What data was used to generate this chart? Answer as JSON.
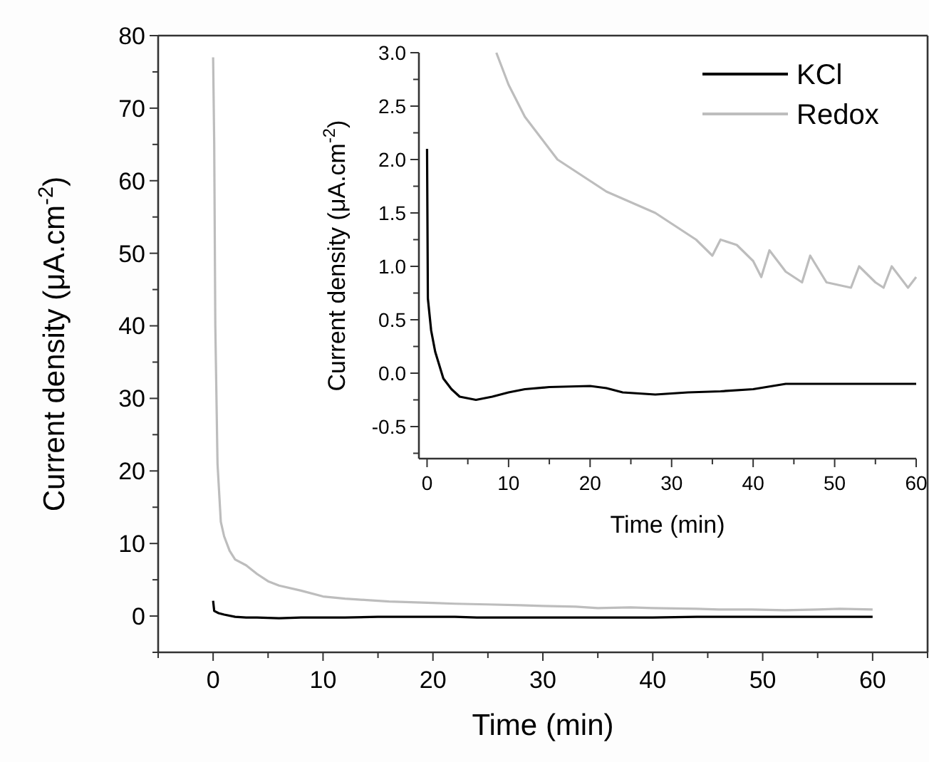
{
  "chart_data": [
    {
      "type": "line",
      "xlabel": "Time (min)",
      "ylabel": "Current density (μA.cm$^{-2}$)",
      "xlim": [
        -5,
        65
      ],
      "ylim": [
        -5,
        80
      ],
      "xticks": [
        {
          "value": -5,
          "label": null
        },
        0,
        {
          "value": 5,
          "label": null
        },
        10,
        {
          "value": 15,
          "label": null
        },
        20,
        {
          "value": 25,
          "label": null
        },
        30,
        {
          "value": 35,
          "label": null
        },
        40,
        {
          "value": 45,
          "label": null
        },
        50,
        {
          "value": 55,
          "label": null
        },
        60,
        {
          "value": 65,
          "label": null
        }
      ],
      "yticks": [
        {
          "value": -5,
          "label": null
        },
        0,
        {
          "value": 5,
          "label": null
        },
        10,
        {
          "value": 15,
          "label": null
        },
        20,
        {
          "value": 25,
          "label": null
        },
        30,
        {
          "value": 35,
          "label": null
        },
        40,
        {
          "value": 45,
          "label": null
        },
        50,
        {
          "value": 55,
          "label": null
        },
        60,
        {
          "value": 65,
          "label": null
        },
        70,
        {
          "value": 75,
          "label": null
        },
        80
      ],
      "legend": false,
      "grid": false,
      "series": [
        {
          "color": "#000000",
          "x": [
            0,
            0.1,
            0.5,
            1,
            2,
            3,
            4,
            6,
            8,
            10,
            12,
            15,
            20,
            22,
            24,
            28,
            32,
            36,
            40,
            44,
            50,
            60
          ],
          "values": [
            2.1,
            0.7,
            0.4,
            0.2,
            -0.1,
            -0.2,
            -0.2,
            -0.3,
            -0.2,
            -0.2,
            -0.2,
            -0.1,
            -0.1,
            -0.1,
            -0.2,
            -0.2,
            -0.2,
            -0.2,
            -0.2,
            -0.1,
            -0.1,
            -0.1
          ]
        },
        {
          "color": "#bdbdbd",
          "x": [
            0,
            0.1,
            0.2,
            0.4,
            0.7,
            1,
            1.5,
            2,
            3,
            4,
            5,
            6,
            8,
            10,
            12,
            14,
            16,
            18,
            20,
            22,
            25,
            28,
            30,
            33,
            35,
            38,
            40,
            44,
            46,
            49,
            52,
            55,
            57,
            60
          ],
          "values": [
            77,
            65,
            40,
            21,
            13,
            11,
            9,
            7.8,
            7,
            5.8,
            4.8,
            4.2,
            3.5,
            2.7,
            2.4,
            2.2,
            2.0,
            1.9,
            1.8,
            1.7,
            1.6,
            1.5,
            1.4,
            1.3,
            1.1,
            1.2,
            1.1,
            1.0,
            0.9,
            0.9,
            0.8,
            0.9,
            1.0,
            0.9
          ]
        }
      ]
    },
    {
      "type": "line",
      "xlabel": "Time (min)",
      "ylabel": "Current density (μA.cm$^{-2}$)",
      "xlim": [
        -1,
        60
      ],
      "ylim": [
        -0.8,
        3.0
      ],
      "xticks": [
        0,
        {
          "value": 5,
          "label": null
        },
        10,
        {
          "value": 15,
          "label": null
        },
        20,
        {
          "value": 25,
          "label": null
        },
        30,
        {
          "value": 35,
          "label": null
        },
        40,
        {
          "value": 45,
          "label": null
        },
        50,
        {
          "value": 55,
          "label": null
        },
        60
      ],
      "yticks": [
        {
          "value": -0.75,
          "label": null
        },
        {
          "value": -0.5,
          "label": "-0.5"
        },
        {
          "value": -0.25,
          "label": null
        },
        {
          "value": 0,
          "label": "0.0"
        },
        {
          "value": 0.25,
          "label": null
        },
        0.5,
        {
          "value": 0.75,
          "label": null
        },
        {
          "value": 1,
          "label": "1.0"
        },
        {
          "value": 1.25,
          "label": null
        },
        1.5,
        {
          "value": 1.75,
          "label": null
        },
        {
          "value": 2,
          "label": "2.0"
        },
        {
          "value": 2.25,
          "label": null
        },
        2.5,
        {
          "value": 2.75,
          "label": null
        },
        {
          "value": 3,
          "label": "3.0"
        }
      ],
      "legend": "top right",
      "grid": false,
      "series": [
        {
          "name": "KCl",
          "color": "#000000",
          "x": [
            0,
            0.1,
            0.5,
            1,
            2,
            3,
            4,
            6,
            8,
            10,
            12,
            15,
            20,
            22,
            24,
            28,
            32,
            36,
            40,
            44,
            50,
            60
          ],
          "values": [
            2.1,
            0.7,
            0.4,
            0.2,
            -0.05,
            -0.15,
            -0.22,
            -0.25,
            -0.22,
            -0.18,
            -0.15,
            -0.13,
            -0.12,
            -0.14,
            -0.18,
            -0.2,
            -0.18,
            -0.17,
            -0.15,
            -0.1,
            -0.1,
            -0.1
          ]
        },
        {
          "name": "Redox",
          "color": "#bdbdbd",
          "x": [
            8.5,
            10,
            12,
            14,
            16,
            18,
            20,
            22,
            25,
            28,
            30,
            33,
            35,
            36,
            38,
            40,
            41,
            42,
            44,
            46,
            47,
            49,
            52,
            53,
            55,
            56,
            57,
            59,
            60
          ],
          "values": [
            3.0,
            2.7,
            2.4,
            2.2,
            2.0,
            1.9,
            1.8,
            1.7,
            1.6,
            1.5,
            1.4,
            1.25,
            1.1,
            1.25,
            1.2,
            1.05,
            0.9,
            1.15,
            0.95,
            0.85,
            1.1,
            0.85,
            0.8,
            1.0,
            0.85,
            0.8,
            1.0,
            0.8,
            0.9
          ]
        }
      ]
    }
  ]
}
